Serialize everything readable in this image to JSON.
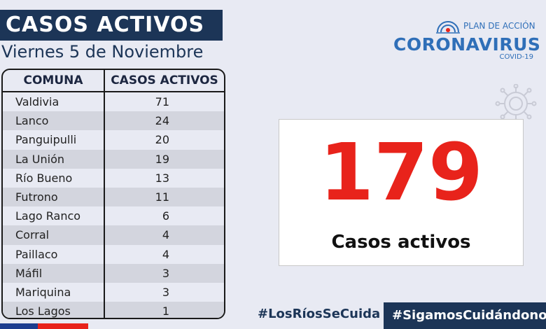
{
  "header": {
    "title": "CASOS ACTIVOS",
    "date": "Viernes 5 de Noviembre"
  },
  "table": {
    "headers": [
      "COMUNA",
      "CASOS ACTIVOS"
    ],
    "rows": [
      {
        "comuna": "Valdivia",
        "casos": "71"
      },
      {
        "comuna": "Lanco",
        "casos": "24"
      },
      {
        "comuna": "Panguipulli",
        "casos": "20"
      },
      {
        "comuna": "La Unión",
        "casos": "19"
      },
      {
        "comuna": "Río Bueno",
        "casos": "13"
      },
      {
        "comuna": "Futrono",
        "casos": "11"
      },
      {
        "comuna": "Lago Ranco",
        "casos": "6"
      },
      {
        "comuna": "Corral",
        "casos": "4"
      },
      {
        "comuna": "Paillaco",
        "casos": "4"
      },
      {
        "comuna": "Máfil",
        "casos": "3"
      },
      {
        "comuna": "Mariquina",
        "casos": "3"
      },
      {
        "comuna": "Los Lagos",
        "casos": "1"
      }
    ]
  },
  "logo": {
    "plan": "PLAN DE ACCIÓN",
    "main": "CORONAVIRUS",
    "sub": "COVID-19",
    "icon": "government-seal-icon"
  },
  "summary": {
    "total": "179",
    "label": "Casos activos"
  },
  "footer": {
    "hashtag1": "#LosRíosSeCuida",
    "hashtag2": "#SigamosCuidándonos"
  },
  "colors": {
    "navy": "#1c3557",
    "red": "#e8231b",
    "blue": "#2f6fb8",
    "background": "#e8eaf3"
  }
}
